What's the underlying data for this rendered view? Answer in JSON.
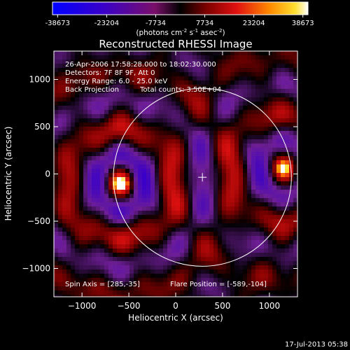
{
  "chart_data": {
    "type": "heatmap",
    "title": "Reconstructed RHESSI Image",
    "xlabel": "Heliocentric X (arcsec)",
    "ylabel": "Heliocentric Y (arcsec)",
    "xlim": [
      -1300,
      1300
    ],
    "ylim": [
      -1300,
      1300
    ],
    "x_ticks": [
      -1000,
      -500,
      0,
      500,
      1000
    ],
    "y_ticks": [
      -1000,
      -500,
      0,
      500,
      1000
    ],
    "colorbar": {
      "ticks": [
        "-38673",
        "-23204",
        "-7734",
        "7734",
        "23204",
        "38673"
      ],
      "range": [
        -38673,
        38673
      ],
      "unit_base": "(photons cm",
      "unit_sup1": "-2",
      "unit_mid": " s",
      "unit_sup2": "-1",
      "unit_end": " asec",
      "unit_sup3": "-2",
      "unit_close": ")"
    },
    "annotations": {
      "time": "26-Apr-2006 17:58:28.000 to 18:02:30.000",
      "detectors": "Detectors: 7F 8F 9F, Att 0",
      "energy": "Energy Range: 6.0 - 25.0 keV",
      "method": "Back Projection",
      "counts": "Total counts: 3.50E+04",
      "spin_axis": "Spin Axis = [285,-35]",
      "flare_position": "Flare Position = [-589,-104]"
    },
    "sources": [
      {
        "x": -589,
        "y": -104,
        "kind": "peak"
      },
      {
        "x": 1150,
        "y": 60,
        "kind": "peak"
      }
    ],
    "solar_disk": {
      "center": [
        285,
        -35
      ],
      "radius": 950
    },
    "marker": {
      "x": 285,
      "y": -35,
      "shape": "plus"
    },
    "grid": false,
    "colormap": "blue-purple-red-yellow-white",
    "footer_date": "17-Jul-2013 05:38"
  }
}
